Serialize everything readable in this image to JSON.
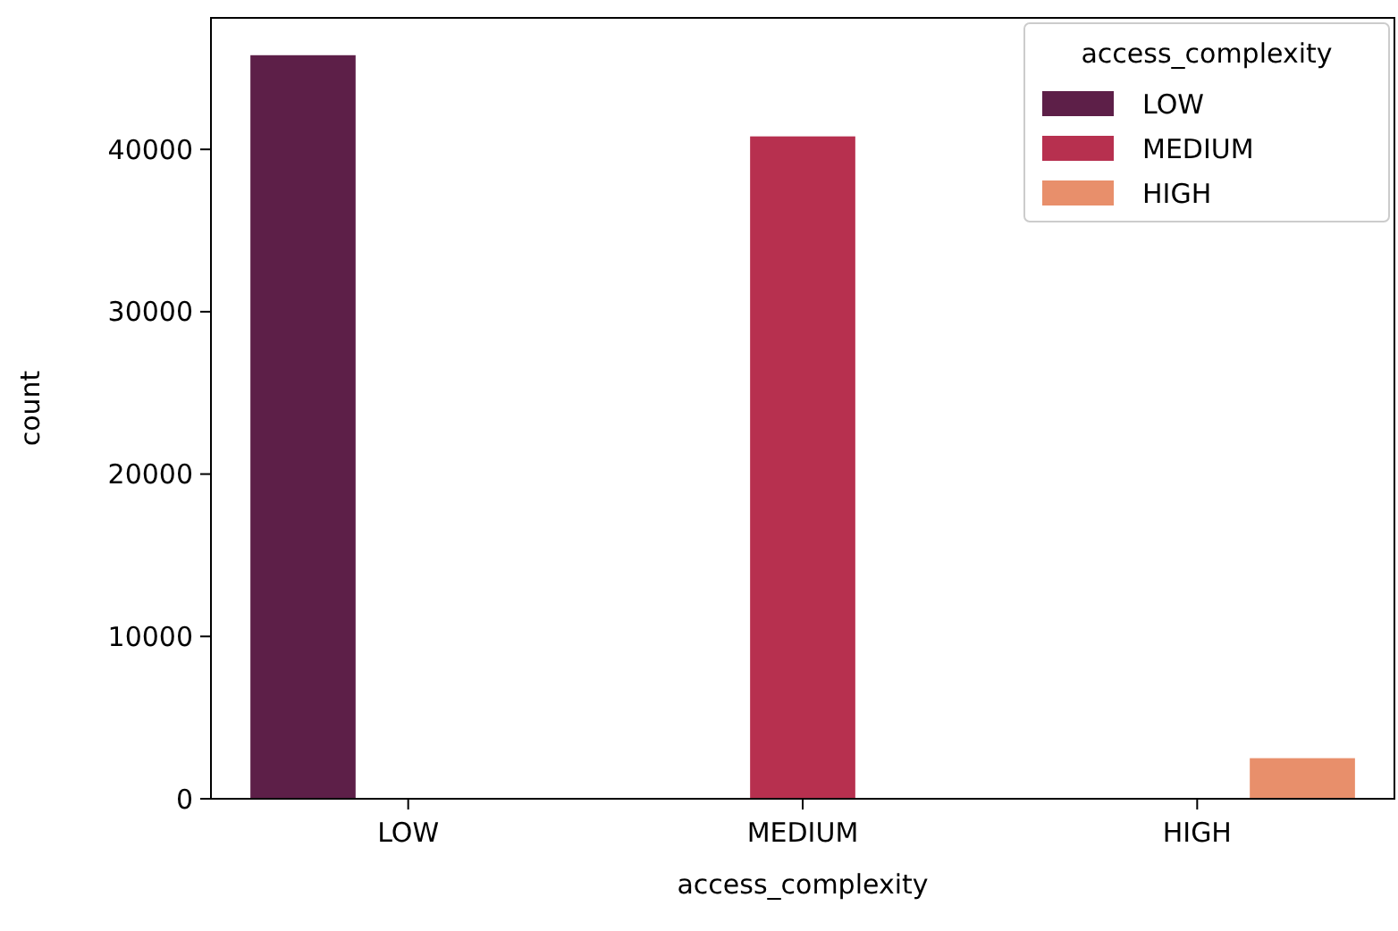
{
  "chart_data": {
    "type": "bar",
    "xlabel": "access_complexity",
    "ylabel": "count",
    "legend_title": "access_complexity",
    "categories": [
      "LOW",
      "MEDIUM",
      "HIGH"
    ],
    "series": [
      {
        "name": "LOW",
        "color": "#5d1f48",
        "values": [
          45800,
          null,
          null
        ]
      },
      {
        "name": "MEDIUM",
        "color": "#b7304f",
        "values": [
          null,
          40800,
          null
        ]
      },
      {
        "name": "HIGH",
        "color": "#e88f6b",
        "values": [
          null,
          null,
          2500
        ]
      }
    ],
    "ylim": [
      0,
      48100
    ],
    "yticks": [
      0,
      10000,
      20000,
      30000,
      40000
    ],
    "legend": "top right"
  }
}
